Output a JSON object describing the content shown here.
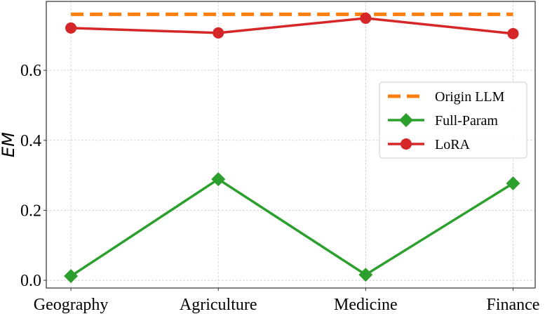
{
  "chart_data": {
    "type": "line",
    "title": "",
    "xlabel": "",
    "ylabel": "EM",
    "categories": [
      "Geography",
      "Agriculture",
      "Medicine",
      "Finance"
    ],
    "series": [
      {
        "name": "Origin LLM",
        "values": [
          0.76,
          0.76,
          0.76,
          0.76
        ],
        "color": "#ff7f0e",
        "style": "dashed",
        "marker": "none"
      },
      {
        "name": "Full-Param",
        "values": [
          0.012,
          0.289,
          0.016,
          0.277
        ],
        "color": "#2ca02c",
        "style": "solid",
        "marker": "diamond"
      },
      {
        "name": "LoRA",
        "values": [
          0.721,
          0.707,
          0.749,
          0.705
        ],
        "color": "#d62728",
        "style": "solid",
        "marker": "circle"
      }
    ],
    "yticks": [
      "0.0",
      "0.2",
      "0.4",
      "0.6"
    ],
    "ytick_values": [
      0,
      0.2,
      0.4,
      0.6
    ],
    "ylim": [
      -0.022,
      0.797
    ],
    "xlim": [
      -0.167,
      3.15
    ],
    "grid": true,
    "legend_position": "center-right"
  }
}
